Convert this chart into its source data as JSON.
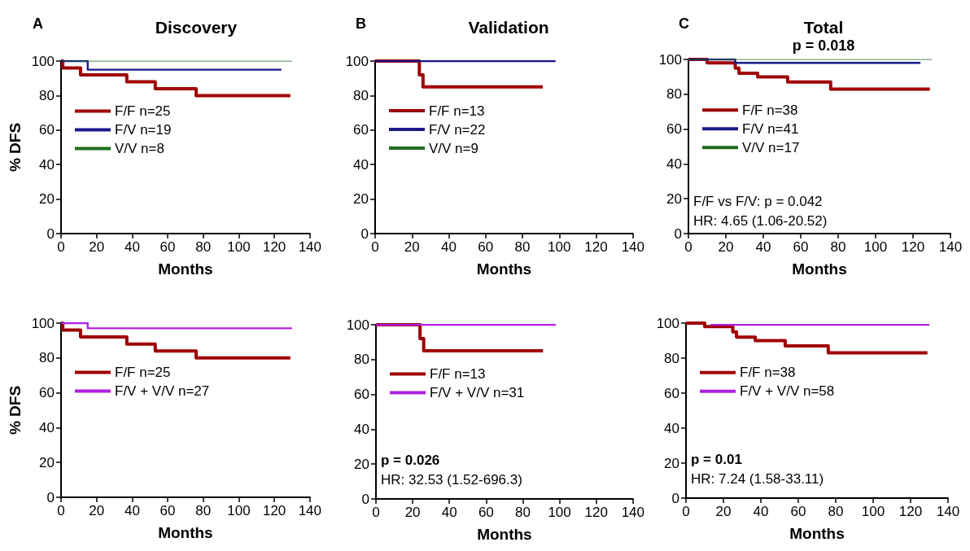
{
  "chart_data": [
    {
      "type": "step",
      "title": "Discovery",
      "ylabel": "% DFS",
      "xlabel": "Months",
      "annotations": [
        "A"
      ],
      "xlim": [
        0,
        140
      ],
      "xticks": [
        0,
        20,
        40,
        60,
        80,
        100,
        120,
        140
      ],
      "ylim": [
        0,
        100
      ],
      "yticks": [
        0,
        20,
        40,
        60,
        80,
        100
      ],
      "grid": false,
      "legend": "left",
      "marker": "none",
      "series": [
        {
          "name": "F/F n=25",
          "color": "#a00000",
          "x": [
            0,
            1,
            11,
            37,
            53,
            76,
            129
          ],
          "values": [
            100,
            96,
            92,
            88,
            84,
            80,
            80
          ]
        },
        {
          "name": "F/V n=19",
          "color": "#1a1a8c",
          "x": [
            0,
            15,
            124
          ],
          "values": [
            100,
            95,
            95
          ]
        },
        {
          "name": "V/V n=8",
          "color": "#1e6e1e",
          "x": [
            0,
            130
          ],
          "values": [
            100,
            100
          ]
        }
      ]
    },
    {
      "type": "step",
      "title": "Validation",
      "xlabel": "Months",
      "annotations": [
        "B"
      ],
      "xlim": [
        0,
        140
      ],
      "xticks": [
        0,
        20,
        40,
        60,
        80,
        100,
        120,
        140
      ],
      "ylim": [
        0,
        100
      ],
      "yticks": [
        0,
        20,
        40,
        60,
        80,
        100
      ],
      "grid": false,
      "legend": "left",
      "marker": "none",
      "series": [
        {
          "name": "F/F n=13",
          "color": "#a00000",
          "x": [
            0,
            24,
            26,
            91
          ],
          "values": [
            100,
            92,
            85,
            85
          ]
        },
        {
          "name": "F/V n=22",
          "color": "#1a1a8c",
          "x": [
            0,
            98
          ],
          "values": [
            100,
            100
          ]
        },
        {
          "name": "V/V n=9",
          "color": "#1e6e1e"
        }
      ]
    },
    {
      "type": "step",
      "title": "Total",
      "subtitle": "p = 0.018",
      "xlabel": "Months",
      "annotations": [
        "C",
        "F/F vs F/V: p = 0.042",
        "HR: 4.65 (1.06-20.52)"
      ],
      "xlim": [
        0,
        140
      ],
      "xticks": [
        0,
        20,
        40,
        60,
        80,
        100,
        120,
        140
      ],
      "ylim": [
        0,
        100
      ],
      "yticks": [
        0,
        20,
        40,
        60,
        80,
        100
      ],
      "grid": false,
      "legend": "left",
      "marker": "none",
      "series": [
        {
          "name": "F/F n=38",
          "color": "#a00000",
          "x": [
            0,
            10,
            25,
            27,
            37,
            53,
            76,
            129
          ],
          "values": [
            100,
            98,
            95,
            92,
            90,
            87,
            83,
            83
          ]
        },
        {
          "name": "F/V n=41",
          "color": "#1a1a8c",
          "x": [
            0,
            25,
            124
          ],
          "values": [
            100,
            98,
            98
          ]
        },
        {
          "name": "V/V n=17",
          "color": "#1e6e1e",
          "x": [
            0,
            130
          ],
          "values": [
            100,
            100
          ]
        }
      ]
    },
    {
      "type": "step",
      "ylabel": "% DFS",
      "xlabel": "Months",
      "xlim": [
        0,
        140
      ],
      "xticks": [
        0,
        20,
        40,
        60,
        80,
        100,
        120,
        140
      ],
      "ylim": [
        0,
        100
      ],
      "yticks": [
        0,
        20,
        40,
        60,
        80,
        100
      ],
      "grid": false,
      "legend": "left",
      "marker": "none",
      "series": [
        {
          "name": "F/F n=25",
          "color": "#a00000",
          "x": [
            0,
            1,
            11,
            37,
            53,
            76,
            129
          ],
          "values": [
            100,
            96,
            92,
            88,
            84,
            80,
            80
          ]
        },
        {
          "name": "F/V + V/V n=27",
          "color": "#b020e0",
          "x": [
            0,
            15,
            130
          ],
          "values": [
            100,
            97,
            97
          ]
        }
      ]
    },
    {
      "type": "step",
      "xlabel": "Months",
      "annotations": [
        "p = 0.026",
        "HR: 32.53 (1.52-696.3)"
      ],
      "xlim": [
        0,
        140
      ],
      "xticks": [
        0,
        20,
        40,
        60,
        80,
        100,
        120,
        140
      ],
      "ylim": [
        0,
        100
      ],
      "yticks": [
        0,
        20,
        40,
        60,
        80,
        100
      ],
      "grid": false,
      "legend": "left",
      "marker": "none",
      "series": [
        {
          "name": "F/F n=13",
          "color": "#a00000",
          "x": [
            0,
            24,
            26,
            91
          ],
          "values": [
            100,
            92,
            85,
            85
          ]
        },
        {
          "name": "F/V + V/V n=31",
          "color": "#b020e0",
          "x": [
            0,
            98
          ],
          "values": [
            100,
            100
          ]
        }
      ]
    },
    {
      "type": "step",
      "xlabel": "Months",
      "annotations": [
        "p = 0.01",
        "HR: 7.24 (1.58-33.11)"
      ],
      "xlim": [
        0,
        140
      ],
      "xticks": [
        0,
        20,
        40,
        60,
        80,
        100,
        120,
        140
      ],
      "ylim": [
        0,
        100
      ],
      "yticks": [
        0,
        20,
        40,
        60,
        80,
        100
      ],
      "grid": false,
      "legend": "left",
      "marker": "none",
      "series": [
        {
          "name": "F/F n=38",
          "color": "#a00000",
          "x": [
            0,
            10,
            25,
            27,
            37,
            53,
            76,
            129
          ],
          "values": [
            100,
            98,
            95,
            92,
            90,
            87,
            83,
            83
          ]
        },
        {
          "name": "F/V + V/V n=58",
          "color": "#b020e0",
          "x": [
            13,
            130
          ],
          "values": [
            99,
            99
          ]
        }
      ]
    }
  ]
}
